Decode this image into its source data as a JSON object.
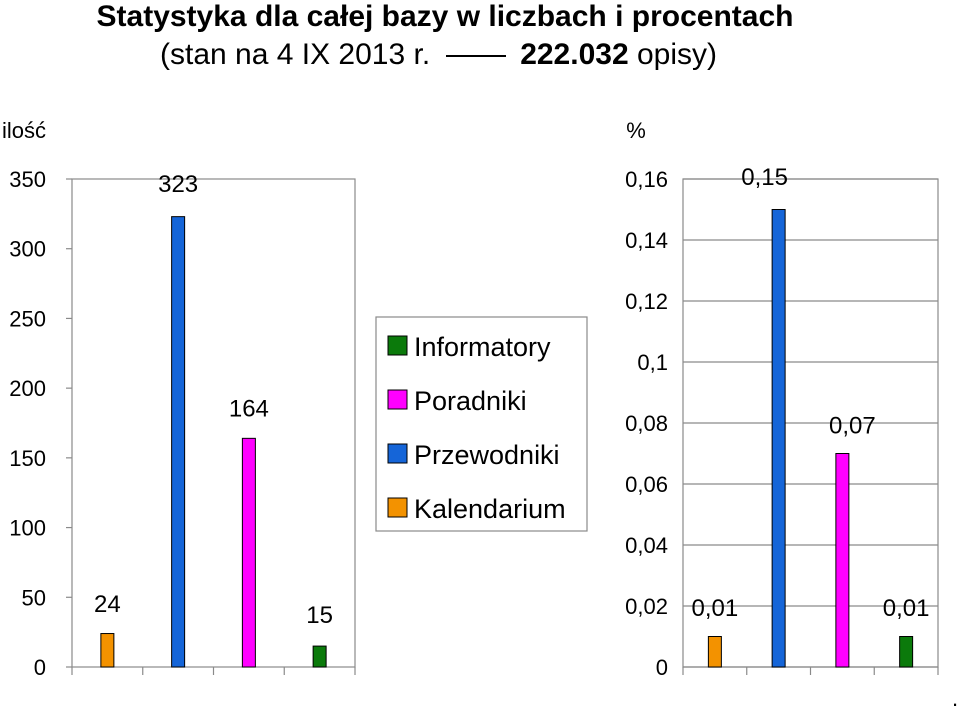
{
  "title": {
    "line1": "Statystyka dla całej bazy w liczbach i procentach",
    "line2_prefix": "(stan na 4 IX 2013 r.",
    "line2_bold": "222.032",
    "line2_suffix": "opisy)"
  },
  "footnote": ".",
  "colors": {
    "Informatory": "#0b7a0b",
    "Poradniki": "#ff00ff",
    "Przewodniki": "#1565d8",
    "Kalendarium": "#f39200"
  },
  "chart_data": [
    {
      "type": "bar",
      "ylabel": "ilość",
      "ylim": [
        0,
        350
      ],
      "yticks": [
        "0",
        "50",
        "100",
        "150",
        "200",
        "250",
        "300",
        "350"
      ],
      "categories": [
        "Kalendarium",
        "Przewodniki",
        "Poradniki",
        "Informatory"
      ],
      "values": [
        24,
        323,
        164,
        15
      ],
      "data_labels": [
        "24",
        "323",
        "164",
        "15"
      ],
      "grid": false
    },
    {
      "type": "bar",
      "ylabel": "%",
      "ylim": [
        0,
        0.16
      ],
      "yticks": [
        "0",
        "0,02",
        "0,04",
        "0,06",
        "0,08",
        "0,1",
        "0,12",
        "0,14",
        "0,16"
      ],
      "categories": [
        "Kalendarium",
        "Przewodniki",
        "Poradniki",
        "Informatory"
      ],
      "values": [
        0.01,
        0.15,
        0.07,
        0.01
      ],
      "data_labels": [
        "0,01",
        "0,15",
        "0,07",
        "0,01"
      ],
      "grid": true
    }
  ],
  "legend": {
    "placement": "center",
    "items": [
      "Informatory",
      "Poradniki",
      "Przewodniki",
      "Kalendarium"
    ]
  }
}
